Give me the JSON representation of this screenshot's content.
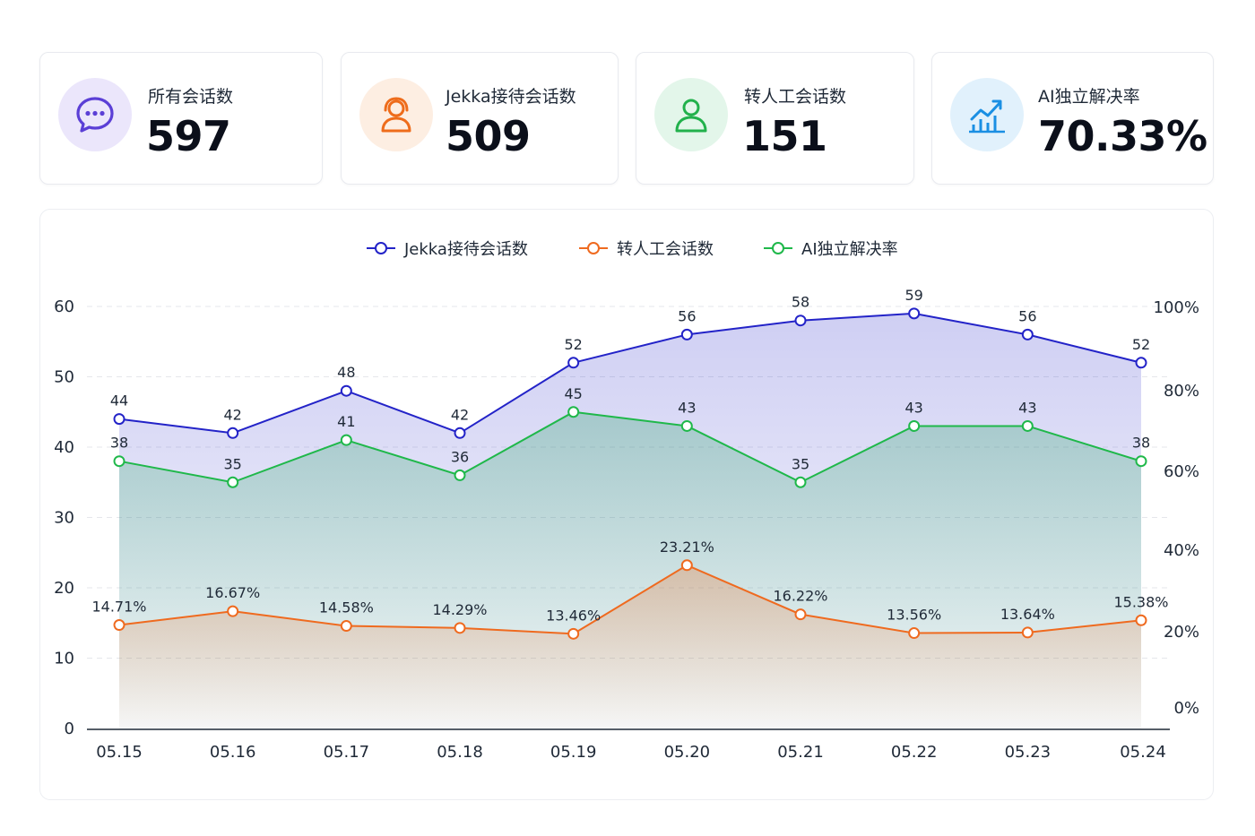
{
  "cards": [
    {
      "label": "所有会话数",
      "value": "597",
      "icon": "chat-bubble-icon",
      "color": "#5b3fd6",
      "bg": "#ebe6fb"
    },
    {
      "label": "Jekka接待会话数",
      "value": "509",
      "icon": "user-headset-icon",
      "color": "#ee6c1b",
      "bg": "#fdeee2"
    },
    {
      "label": "转人工会话数",
      "value": "151",
      "icon": "person-icon",
      "color": "#22b14c",
      "bg": "#e3f6ea"
    },
    {
      "label": "AI独立解决率",
      "value": "70.33%",
      "icon": "trend-chart-icon",
      "color": "#1a8fe3",
      "bg": "#e1f1fc"
    }
  ],
  "chart_data": {
    "type": "line",
    "categories": [
      "05.15",
      "05.16",
      "05.17",
      "05.18",
      "05.19",
      "05.20",
      "05.21",
      "05.22",
      "05.23",
      "05.24"
    ],
    "y_left": {
      "ticks": [
        "0",
        "10",
        "20",
        "30",
        "40",
        "50",
        "60"
      ],
      "range": [
        0,
        60
      ]
    },
    "y_right": {
      "ticks": [
        "0%",
        "20%",
        "40%",
        "60%",
        "80%",
        "100%"
      ],
      "range": [
        0,
        100
      ]
    },
    "grid": true,
    "legend_position": "top-center",
    "series": [
      {
        "name": "Jekka接待会话数",
        "color": "#2323c8",
        "values": [
          44,
          42,
          48,
          42,
          52,
          56,
          58,
          59,
          56,
          52
        ],
        "labels": [
          "44",
          "42",
          "48",
          "42",
          "52",
          "56",
          "58",
          "59",
          "56",
          "52"
        ]
      },
      {
        "name": "转人工会话数",
        "color": "#ef6a1f",
        "values": [
          14.71,
          16.67,
          14.58,
          14.29,
          13.46,
          23.21,
          16.22,
          13.56,
          13.64,
          15.38
        ],
        "labels": [
          "14.71%",
          "16.67%",
          "14.58%",
          "14.29%",
          "13.46%",
          "23.21%",
          "16.22%",
          "13.56%",
          "13.64%",
          "15.38%"
        ]
      },
      {
        "name": "AI独立解决率",
        "color": "#1fb84a",
        "values": [
          38,
          35,
          41,
          36,
          45,
          43,
          35,
          43,
          43,
          38
        ],
        "labels": [
          "38",
          "35",
          "41",
          "36",
          "45",
          "43",
          "35",
          "43",
          "43",
          "38"
        ]
      }
    ]
  }
}
